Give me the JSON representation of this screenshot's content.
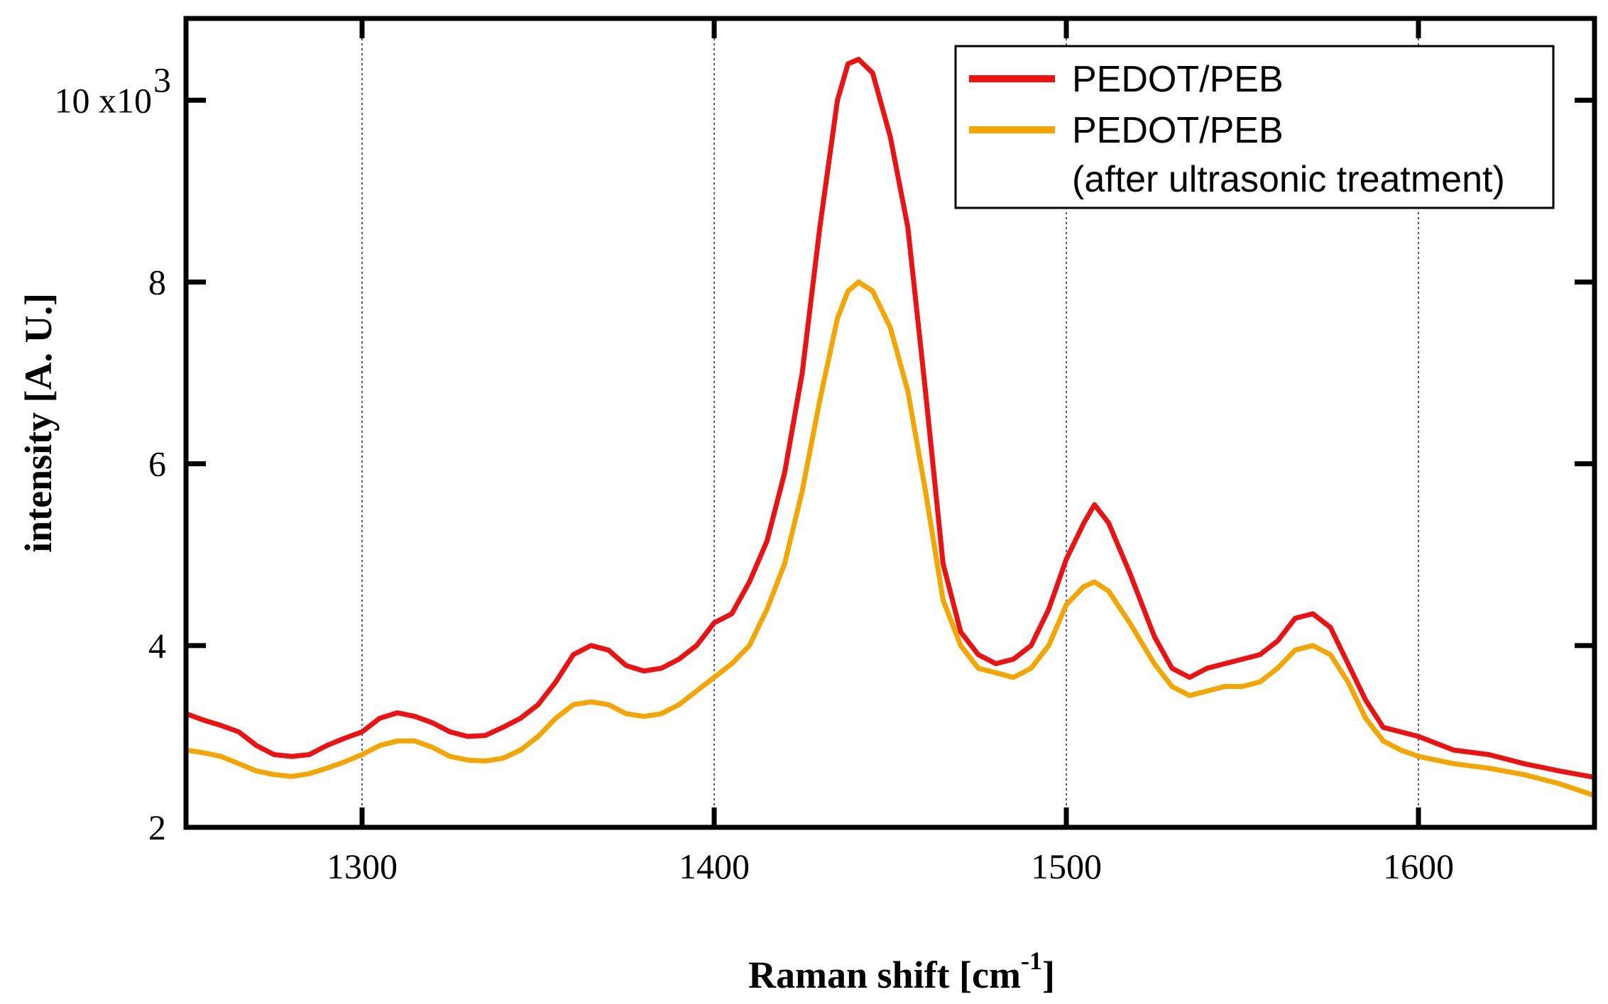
{
  "chart_data": {
    "type": "line",
    "title": "",
    "xlabel": "Raman shift [cm",
    "xlabel_sup": "-1",
    "xlabel_end": "]",
    "ylabel": "intensity [A. U.]",
    "xlim": [
      1250,
      1650
    ],
    "ylim": [
      2000,
      10900
    ],
    "x_ticks": [
      1300,
      1400,
      1500,
      1600
    ],
    "x_tick_labels": [
      "1300",
      "1400",
      "1500",
      "1600"
    ],
    "y_ticks": [
      2000,
      4000,
      6000,
      8000,
      10000
    ],
    "y_tick_labels": [
      "2",
      "4",
      "6",
      "8",
      "10 x10"
    ],
    "y_multiplier_sup": "3",
    "vertical_gridlines": [
      1300,
      1400,
      1500,
      1600
    ],
    "grid_color": "#4a4af0",
    "legend_position": "top-right",
    "series": [
      {
        "name": "PEDOT/PEB",
        "legend_label": "PEDOT/PEB",
        "color": "#ee1111",
        "x": [
          1250,
          1255,
          1260,
          1265,
          1270,
          1275,
          1280,
          1285,
          1290,
          1295,
          1300,
          1305,
          1310,
          1315,
          1320,
          1325,
          1330,
          1335,
          1340,
          1345,
          1350,
          1355,
          1360,
          1365,
          1370,
          1375,
          1380,
          1385,
          1390,
          1395,
          1400,
          1405,
          1410,
          1415,
          1420,
          1425,
          1430,
          1435,
          1438,
          1441,
          1445,
          1450,
          1455,
          1460,
          1465,
          1470,
          1475,
          1480,
          1485,
          1490,
          1495,
          1500,
          1505,
          1508,
          1512,
          1518,
          1525,
          1530,
          1535,
          1540,
          1545,
          1550,
          1555,
          1560,
          1565,
          1570,
          1575,
          1580,
          1585,
          1590,
          1595,
          1600,
          1610,
          1620,
          1630,
          1640,
          1650
        ],
        "values": [
          3250,
          3180,
          3120,
          3050,
          2900,
          2800,
          2780,
          2800,
          2900,
          2980,
          3050,
          3200,
          3260,
          3220,
          3150,
          3050,
          3000,
          3010,
          3100,
          3200,
          3350,
          3600,
          3900,
          4000,
          3950,
          3780,
          3720,
          3750,
          3850,
          4000,
          4250,
          4350,
          4700,
          5150,
          5900,
          7000,
          8600,
          10000,
          10400,
          10450,
          10300,
          9600,
          8600,
          6800,
          4900,
          4150,
          3900,
          3800,
          3850,
          4000,
          4400,
          4950,
          5350,
          5550,
          5350,
          4800,
          4100,
          3750,
          3650,
          3750,
          3800,
          3850,
          3900,
          4050,
          4300,
          4350,
          4200,
          3800,
          3400,
          3100,
          3050,
          3000,
          2850,
          2800,
          2700,
          2620,
          2550
        ]
      },
      {
        "name": "PEDOT/PEB (after ultrasonic treatment)",
        "legend_label": "PEDOT/PEB",
        "legend_label_line2": "(after ultrasonic treatment)",
        "color": "#f5a500",
        "x": [
          1250,
          1255,
          1260,
          1265,
          1270,
          1275,
          1280,
          1285,
          1290,
          1295,
          1300,
          1305,
          1310,
          1315,
          1320,
          1325,
          1330,
          1335,
          1340,
          1345,
          1350,
          1355,
          1360,
          1365,
          1370,
          1375,
          1380,
          1385,
          1390,
          1395,
          1400,
          1405,
          1410,
          1415,
          1420,
          1425,
          1430,
          1435,
          1438,
          1441,
          1445,
          1450,
          1455,
          1460,
          1465,
          1470,
          1475,
          1480,
          1485,
          1490,
          1495,
          1500,
          1505,
          1508,
          1512,
          1518,
          1525,
          1530,
          1535,
          1540,
          1545,
          1550,
          1555,
          1560,
          1565,
          1570,
          1575,
          1580,
          1585,
          1590,
          1595,
          1600,
          1610,
          1620,
          1630,
          1640,
          1650
        ],
        "values": [
          2850,
          2820,
          2780,
          2700,
          2620,
          2580,
          2560,
          2590,
          2650,
          2720,
          2800,
          2900,
          2950,
          2950,
          2880,
          2780,
          2740,
          2730,
          2760,
          2850,
          3000,
          3200,
          3350,
          3380,
          3350,
          3250,
          3220,
          3250,
          3350,
          3500,
          3650,
          3800,
          4000,
          4400,
          4900,
          5700,
          6700,
          7600,
          7900,
          8000,
          7900,
          7500,
          6800,
          5700,
          4500,
          4000,
          3750,
          3700,
          3650,
          3750,
          4000,
          4450,
          4650,
          4700,
          4600,
          4250,
          3800,
          3550,
          3450,
          3500,
          3550,
          3550,
          3600,
          3750,
          3950,
          4000,
          3900,
          3600,
          3200,
          2950,
          2850,
          2780,
          2700,
          2650,
          2580,
          2480,
          2350
        ]
      }
    ]
  }
}
